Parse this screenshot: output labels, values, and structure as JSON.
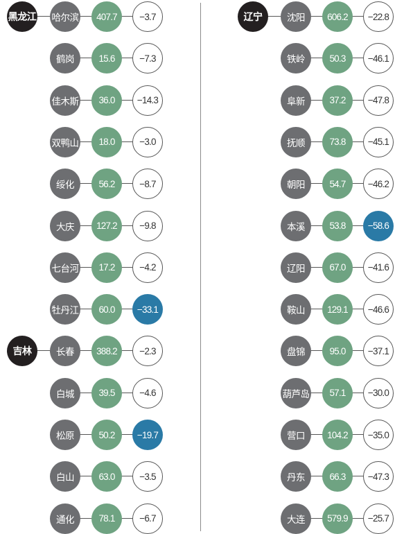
{
  "colors": {
    "province": "#231f20",
    "city": "#6d6e71",
    "value": "#6fa382",
    "highlight": "#2a7aa6",
    "change_border": "#555555"
  },
  "columns": [
    {
      "groups": [
        {
          "province": "黑龙江",
          "cities": [
            {
              "name": "哈尔滨",
              "value": "407.7",
              "change": "−3.7",
              "highlight": false
            },
            {
              "name": "鹤岗",
              "value": "15.6",
              "change": "−7.3",
              "highlight": false
            },
            {
              "name": "佳木斯",
              "value": "36.0",
              "change": "−14.3",
              "highlight": false
            },
            {
              "name": "双鸭山",
              "value": "18.0",
              "change": "−3.0",
              "highlight": false
            },
            {
              "name": "绥化",
              "value": "56.2",
              "change": "−8.7",
              "highlight": false
            },
            {
              "name": "大庆",
              "value": "127.2",
              "change": "−9.8",
              "highlight": false
            },
            {
              "name": "七台河",
              "value": "17.2",
              "change": "−4.2",
              "highlight": false
            },
            {
              "name": "牡丹江",
              "value": "60.0",
              "change": "−33.1",
              "highlight": true
            }
          ]
        },
        {
          "province": "吉林",
          "cities": [
            {
              "name": "长春",
              "value": "388.2",
              "change": "−2.3",
              "highlight": false
            },
            {
              "name": "白城",
              "value": "39.5",
              "change": "−4.6",
              "highlight": false
            },
            {
              "name": "松原",
              "value": "50.2",
              "change": "−19.7",
              "highlight": true
            },
            {
              "name": "白山",
              "value": "63.0",
              "change": "−3.5",
              "highlight": false
            },
            {
              "name": "通化",
              "value": "78.1",
              "change": "−6.7",
              "highlight": false
            }
          ]
        }
      ]
    },
    {
      "groups": [
        {
          "province": "辽宁",
          "cities": [
            {
              "name": "沈阳",
              "value": "606.2",
              "change": "−22.8",
              "highlight": false
            },
            {
              "name": "铁岭",
              "value": "50.3",
              "change": "−46.1",
              "highlight": false
            },
            {
              "name": "阜新",
              "value": "37.2",
              "change": "−47.8",
              "highlight": false
            },
            {
              "name": "抚顺",
              "value": "73.8",
              "change": "−45.1",
              "highlight": false
            },
            {
              "name": "朝阳",
              "value": "54.7",
              "change": "−46.2",
              "highlight": false
            },
            {
              "name": "本溪",
              "value": "53.8",
              "change": "−58.6",
              "highlight": true
            },
            {
              "name": "辽阳",
              "value": "67.0",
              "change": "−41.6",
              "highlight": false
            },
            {
              "name": "鞍山",
              "value": "129.1",
              "change": "−46.6",
              "highlight": false
            },
            {
              "name": "盘锦",
              "value": "95.0",
              "change": "−37.1",
              "highlight": false
            },
            {
              "name": "葫芦岛",
              "value": "57.1",
              "change": "−30.0",
              "highlight": false
            },
            {
              "name": "营口",
              "value": "104.2",
              "change": "−35.0",
              "highlight": false
            },
            {
              "name": "丹东",
              "value": "66.3",
              "change": "−47.3",
              "highlight": false
            },
            {
              "name": "大连",
              "value": "579.9",
              "change": "−25.7",
              "highlight": false
            }
          ]
        }
      ]
    }
  ]
}
